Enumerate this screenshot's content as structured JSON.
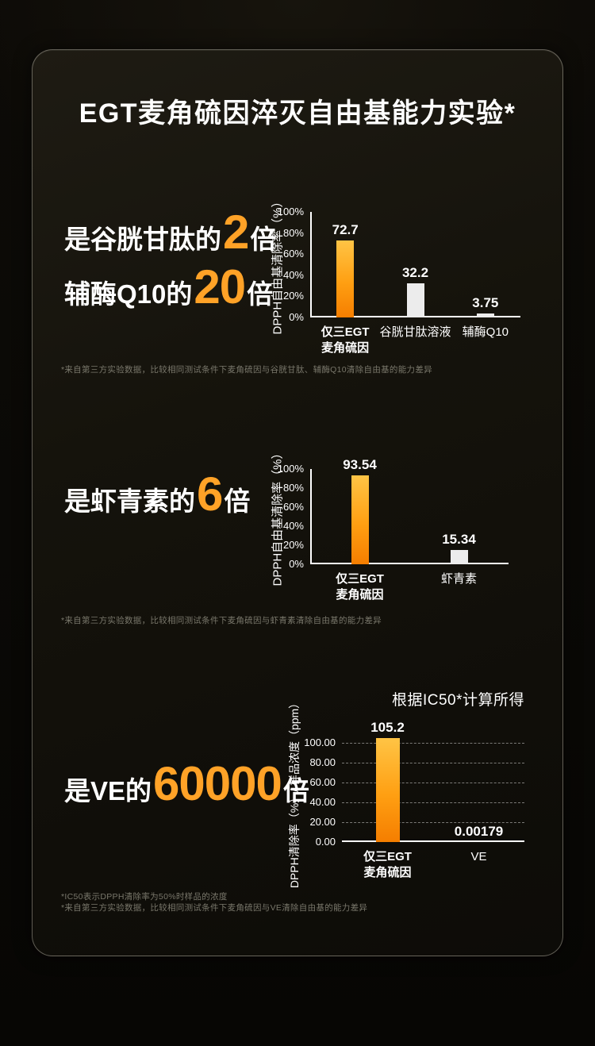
{
  "title": "EGT麦角硫因淬灭自由基能力实验*",
  "colors": {
    "accent_orange": "#FFA227",
    "highlight_bar_top": "#FFC445",
    "highlight_bar_bottom": "#F57E00",
    "normal_bar": "#ECECEC",
    "panel_border": "#D2CDBE",
    "footnote_gray": "#79776B"
  },
  "sections": [
    {
      "headline_lines": [
        {
          "prefix": "是谷胱甘肽的",
          "number": "2",
          "suffix": "倍"
        },
        {
          "prefix": "辅酶Q10的",
          "number": "20",
          "suffix": "倍"
        }
      ],
      "footnote": "*来自第三方实验数据，比较相同测试条件下麦角硫因与谷胱甘肽、辅酶Q10清除自由基的能力差异"
    },
    {
      "headline_lines": [
        {
          "prefix": "是虾青素的",
          "number": "6",
          "suffix": "倍"
        }
      ],
      "footnote": "*来自第三方实验数据，比较相同测试条件下麦角硫因与虾青素清除自由基的能力差异"
    },
    {
      "headline_lines": [
        {
          "prefix": "是VE的",
          "number": "60000",
          "suffix": "倍"
        }
      ],
      "footnotes": [
        "*IC50表示DPPH清除率为50%时样品的浓度",
        "*来自第三方实验数据，比较相同测试条件下麦角硫因与VE清除自由基的能力差异"
      ]
    }
  ],
  "chart_data": [
    {
      "type": "bar",
      "title": "",
      "ylabel": "DPPH自由基清除率（%）",
      "ymax": 100,
      "grid": false,
      "yticks": [
        {
          "v": 0,
          "label": "0%"
        },
        {
          "v": 20,
          "label": "20%"
        },
        {
          "v": 40,
          "label": "40%"
        },
        {
          "v": 60,
          "label": "60%"
        },
        {
          "v": 80,
          "label": "80%"
        },
        {
          "v": 100,
          "label": "100%"
        }
      ],
      "categories": [
        "仅三EGT\n麦角硫因",
        "谷胱甘肽溶液",
        "辅酶Q10"
      ],
      "values": [
        72.7,
        32.2,
        3.75
      ],
      "value_labels": [
        "72.7",
        "32.2",
        "3.75"
      ],
      "highlight": [
        true,
        false,
        false
      ]
    },
    {
      "type": "bar",
      "title": "",
      "ylabel": "DPPH自由基清除率（%）",
      "ymax": 100,
      "grid": false,
      "yticks": [
        {
          "v": 0,
          "label": "0%"
        },
        {
          "v": 20,
          "label": "20%"
        },
        {
          "v": 40,
          "label": "40%"
        },
        {
          "v": 60,
          "label": "60%"
        },
        {
          "v": 80,
          "label": "80%"
        },
        {
          "v": 100,
          "label": "100%"
        }
      ],
      "categories": [
        "仅三EGT\n麦角硫因",
        "虾青素"
      ],
      "values": [
        93.54,
        15.34
      ],
      "value_labels": [
        "93.54",
        "15.34"
      ],
      "highlight": [
        true,
        false
      ]
    },
    {
      "type": "bar",
      "title": "根据IC50*计算所得",
      "ylabel": "DPPH清除率（%）/ 样品浓度（ppm）",
      "ymax": 100,
      "grid": true,
      "yticks": [
        {
          "v": 0,
          "label": "0.00"
        },
        {
          "v": 20,
          "label": "20.00"
        },
        {
          "v": 40,
          "label": "40.00"
        },
        {
          "v": 60,
          "label": "60.00"
        },
        {
          "v": 80,
          "label": "80.00"
        },
        {
          "v": 100,
          "label": "100.00"
        }
      ],
      "categories": [
        "仅三EGT\n麦角硫因",
        "VE"
      ],
      "values": [
        105.2,
        0.00179
      ],
      "value_labels": [
        "105.2",
        "0.00179"
      ],
      "highlight": [
        true,
        false
      ]
    }
  ]
}
